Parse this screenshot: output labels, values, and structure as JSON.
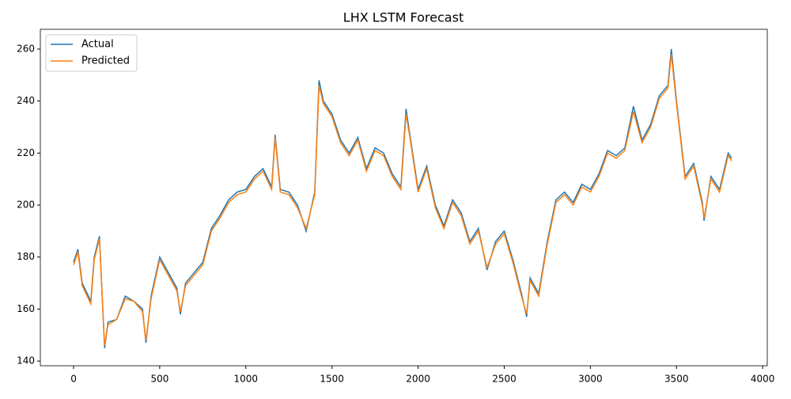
{
  "chart_data": {
    "type": "line",
    "title": "LHX LSTM Forecast",
    "x": [
      0,
      25,
      50,
      100,
      120,
      150,
      180,
      200,
      250,
      300,
      350,
      400,
      420,
      450,
      500,
      550,
      600,
      620,
      650,
      700,
      750,
      800,
      850,
      900,
      950,
      1000,
      1050,
      1100,
      1150,
      1170,
      1200,
      1250,
      1300,
      1350,
      1400,
      1425,
      1450,
      1500,
      1550,
      1600,
      1650,
      1700,
      1750,
      1800,
      1850,
      1900,
      1930,
      1950,
      2000,
      2050,
      2100,
      2150,
      2200,
      2250,
      2300,
      2350,
      2400,
      2450,
      2500,
      2550,
      2600,
      2630,
      2650,
      2700,
      2750,
      2800,
      2850,
      2900,
      2950,
      3000,
      3050,
      3100,
      3150,
      3200,
      3250,
      3300,
      3350,
      3400,
      3450,
      3470,
      3500,
      3550,
      3600,
      3650,
      3660,
      3700,
      3750,
      3800,
      3820
    ],
    "series": [
      {
        "name": "Actual",
        "color": "#1f77b4",
        "values": [
          178,
          183,
          170,
          163,
          180,
          188,
          145,
          155,
          156,
          165,
          163,
          160,
          147,
          165,
          180,
          174,
          168,
          158,
          170,
          174,
          178,
          191,
          196,
          202,
          205,
          206,
          211,
          214,
          207,
          227,
          206,
          205,
          200,
          190,
          205,
          248,
          240,
          235,
          225,
          220,
          226,
          214,
          222,
          220,
          212,
          207,
          237,
          228,
          206,
          215,
          200,
          192,
          202,
          197,
          186,
          191,
          175,
          186,
          190,
          179,
          166,
          157,
          172,
          166,
          186,
          202,
          205,
          201,
          208,
          206,
          212,
          221,
          219,
          222,
          238,
          225,
          231,
          242,
          246,
          260,
          240,
          211,
          216,
          201,
          194,
          211,
          206,
          220,
          218
        ]
      },
      {
        "name": "Predicted",
        "color": "#ff7f0e",
        "values": [
          177,
          182,
          169,
          162,
          179,
          187,
          146,
          154,
          156,
          164,
          163,
          159,
          148,
          164,
          179,
          173,
          167,
          159,
          169,
          173,
          177,
          190,
          195,
          201,
          204,
          205,
          210,
          213,
          206,
          226,
          205,
          204,
          199,
          191,
          204,
          246,
          239,
          234,
          224,
          219,
          225,
          213,
          221,
          219,
          211,
          206,
          235,
          227,
          205,
          214,
          199,
          191,
          201,
          196,
          185,
          190,
          176,
          185,
          189,
          178,
          165,
          158,
          171,
          165,
          185,
          201,
          204,
          200,
          207,
          205,
          211,
          220,
          218,
          221,
          236,
          224,
          230,
          241,
          245,
          258,
          239,
          210,
          215,
          200,
          195,
          210,
          205,
          219,
          217
        ]
      }
    ],
    "xlim": [
      -193,
      4027
    ],
    "ylim": [
      138.2,
      267.6
    ],
    "xticks": [
      0,
      500,
      1000,
      1500,
      2000,
      2500,
      3000,
      3500,
      4000
    ],
    "yticks": [
      140,
      160,
      180,
      200,
      220,
      240,
      260
    ],
    "legend": "upper left"
  }
}
